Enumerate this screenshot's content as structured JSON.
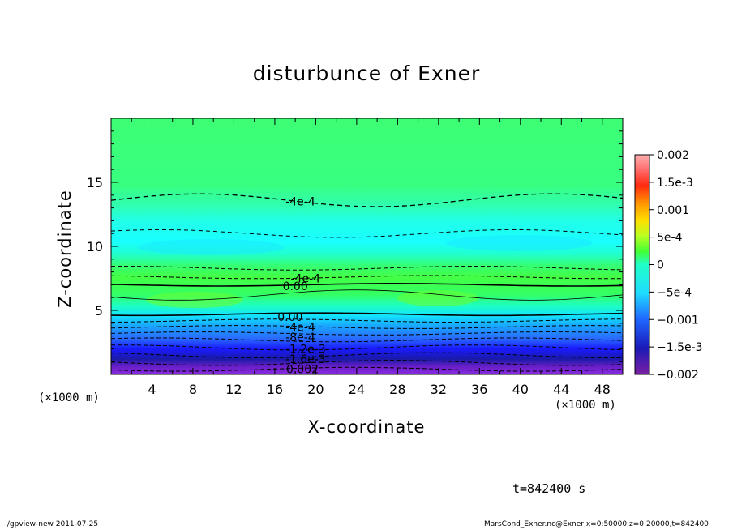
{
  "chart_data": {
    "type": "contour",
    "title": "disturbunce of Exner",
    "xlabel": "X-coordinate",
    "ylabel": "Z-coordinate",
    "x_unit": "(×1000 m)",
    "z_unit": "(×1000 m)",
    "xlim": [
      0,
      50
    ],
    "ylim": [
      0,
      20
    ],
    "x_ticks": [
      "4",
      "8",
      "12",
      "16",
      "20",
      "24",
      "28",
      "32",
      "36",
      "40",
      "44",
      "48"
    ],
    "y_ticks": [
      "5",
      "10",
      "15"
    ],
    "colorbar": {
      "min": -0.002,
      "max": 0.002,
      "labels": [
        "0.002",
        "1.5e-3",
        "0.001",
        "5e-4",
        "0",
        "−5e-4",
        "−0.001",
        "−1.5e-3",
        "−0.002"
      ]
    },
    "contour_labels": [
      {
        "text": "-4e-4",
        "x": 18.5,
        "z": 13.5
      },
      {
        "text": "-4e-4",
        "x": 19,
        "z": 7.5
      },
      {
        "text": "0.00",
        "x": 18,
        "z": 6.9
      },
      {
        "text": "0.00",
        "x": 17.5,
        "z": 4.5
      },
      {
        "text": "-4e-4",
        "x": 18.5,
        "z": 3.7
      },
      {
        "text": "-8e-4",
        "x": 18.5,
        "z": 2.9
      },
      {
        "text": "-1.2e-3",
        "x": 19,
        "z": 2.0
      },
      {
        "text": "-1.6e-3",
        "x": 19,
        "z": 1.2
      },
      {
        "text": "-0.002",
        "x": 18.5,
        "z": 0.4
      }
    ],
    "time_label": "t=842400 s"
  },
  "footer": {
    "left": "./gpview-new  2011-07-25",
    "right": "MarsCond_Exner.nc@Exner,x=0:50000,z=0:20000,t=842400"
  }
}
